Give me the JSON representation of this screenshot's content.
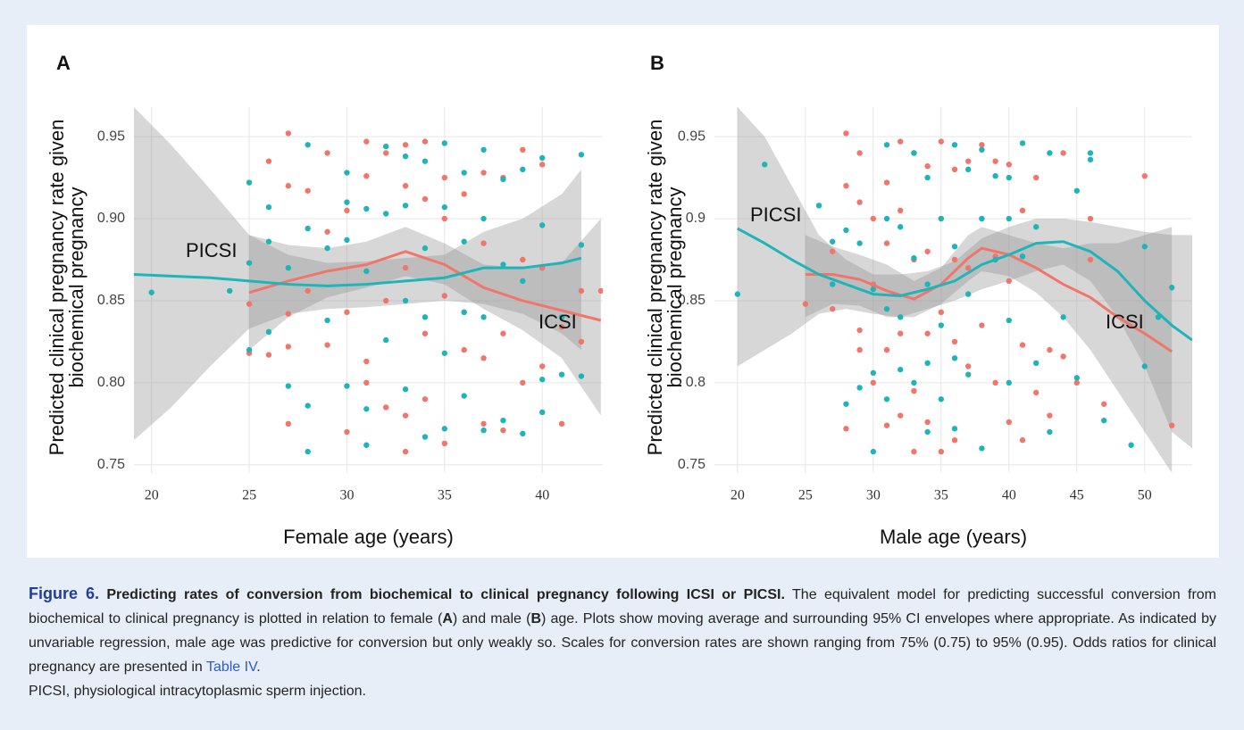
{
  "chart_data": [
    {
      "type": "scatter",
      "panel_label": "A",
      "xlabel": "Female age (years)",
      "ylabel": [
        "Predicted clinical pregnancy rate given",
        "biochemical pregnancy"
      ],
      "xlim": [
        19.1,
        43.1
      ],
      "ylim": [
        0.745,
        0.968
      ],
      "xticks": [
        20,
        25,
        30,
        35,
        40
      ],
      "yticks": [
        0.75,
        {
          "value": 0.8,
          "label": "0.80"
        },
        0.85,
        {
          "value": 0.9,
          "label": "0.90"
        },
        0.95
      ],
      "grid": true,
      "series": [
        {
          "name": "ICSI",
          "color": "#f0756b",
          "x": [
            25,
            25,
            26,
            26,
            27,
            27,
            27,
            27,
            27,
            28,
            28,
            29,
            29,
            29,
            30,
            30,
            30,
            31,
            31,
            31,
            31,
            32,
            32,
            32,
            33,
            33,
            33,
            33,
            33,
            34,
            34,
            34,
            34,
            35,
            35,
            35,
            35,
            36,
            36,
            36,
            37,
            37,
            37,
            37,
            38,
            38,
            38,
            39,
            39,
            39,
            40,
            40,
            40,
            41,
            41,
            42,
            42,
            43
          ],
          "values": [
            0.818,
            0.848,
            0.817,
            0.935,
            0.952,
            0.92,
            0.842,
            0.822,
            0.775,
            0.917,
            0.856,
            0.892,
            0.823,
            0.94,
            0.77,
            0.843,
            0.905,
            0.947,
            0.926,
            0.813,
            0.8,
            0.94,
            0.85,
            0.785,
            0.945,
            0.92,
            0.87,
            0.78,
            0.758,
            0.947,
            0.912,
            0.83,
            0.79,
            0.925,
            0.9,
            0.853,
            0.763,
            0.915,
            0.843,
            0.82,
            0.928,
            0.885,
            0.815,
            0.775,
            0.925,
            0.83,
            0.771,
            0.942,
            0.875,
            0.8,
            0.933,
            0.87,
            0.81,
            0.775,
            0.834,
            0.856,
            0.825,
            0.856
          ],
          "trend": {
            "x": [
              25,
              27,
              29,
              31,
              33,
              35,
              37,
              39,
              41,
              43
            ],
            "values": [
              0.855,
              0.862,
              0.868,
              0.872,
              0.88,
              0.872,
              0.858,
              0.85,
              0.844,
              0.838
            ],
            "lower": [
              0.82,
              0.84,
              0.852,
              0.858,
              0.865,
              0.86,
              0.845,
              0.832,
              0.815,
              0.78
            ],
            "upper": [
              0.89,
              0.884,
              0.882,
              0.886,
              0.895,
              0.885,
              0.872,
              0.87,
              0.873,
              0.9
            ]
          }
        },
        {
          "name": "PICSI",
          "color": "#1fb5b8",
          "x": [
            20,
            24,
            25,
            25,
            25,
            26,
            26,
            26,
            27,
            27,
            28,
            28,
            28,
            28,
            29,
            29,
            30,
            30,
            30,
            30,
            31,
            31,
            31,
            31,
            32,
            32,
            32,
            33,
            33,
            33,
            33,
            34,
            34,
            34,
            34,
            35,
            35,
            35,
            35,
            36,
            36,
            36,
            36,
            37,
            37,
            37,
            37,
            38,
            38,
            38,
            39,
            39,
            39,
            40,
            40,
            40,
            40,
            41,
            41,
            42,
            42,
            42
          ],
          "values": [
            0.855,
            0.856,
            0.922,
            0.873,
            0.82,
            0.907,
            0.886,
            0.831,
            0.87,
            0.798,
            0.945,
            0.894,
            0.786,
            0.758,
            0.838,
            0.882,
            0.928,
            0.91,
            0.887,
            0.798,
            0.906,
            0.868,
            0.784,
            0.762,
            0.944,
            0.903,
            0.826,
            0.938,
            0.908,
            0.85,
            0.796,
            0.935,
            0.882,
            0.84,
            0.767,
            0.946,
            0.907,
            0.818,
            0.772,
            0.928,
            0.886,
            0.843,
            0.792,
            0.942,
            0.9,
            0.84,
            0.771,
            0.924,
            0.872,
            0.777,
            0.93,
            0.862,
            0.769,
            0.937,
            0.896,
            0.782,
            0.802,
            0.84,
            0.805,
            0.939,
            0.884,
            0.804
          ],
          "trend": {
            "x": [
              19.1,
              21,
              23,
              25,
              27,
              29,
              31,
              33,
              35,
              37,
              39,
              41,
              42
            ],
            "values": [
              0.866,
              0.865,
              0.864,
              0.862,
              0.86,
              0.859,
              0.86,
              0.862,
              0.864,
              0.87,
              0.87,
              0.873,
              0.876
            ],
            "lower": [
              0.765,
              0.785,
              0.81,
              0.833,
              0.842,
              0.845,
              0.846,
              0.848,
              0.85,
              0.848,
              0.842,
              0.83,
              0.82
            ],
            "upper": [
              0.968,
              0.945,
              0.918,
              0.89,
              0.878,
              0.873,
              0.874,
              0.876,
              0.878,
              0.892,
              0.9,
              0.915,
              0.93
            ]
          }
        }
      ]
    },
    {
      "type": "scatter",
      "panel_label": "B",
      "xlabel": "Male age (years)",
      "ylabel": [
        "Predicted clinical pregnancy rate given",
        "biochemical pregnancy"
      ],
      "xlim": [
        18.3,
        53.5
      ],
      "ylim": [
        0.745,
        0.968
      ],
      "xticks": [
        20,
        25,
        30,
        35,
        40,
        45,
        50
      ],
      "yticks": [
        0.75,
        0.8,
        0.85,
        0.9,
        0.95
      ],
      "grid": true,
      "series": [
        {
          "name": "ICSI",
          "color": "#f0756b",
          "x": [
            25,
            27,
            27,
            28,
            28,
            28,
            29,
            29,
            29,
            29,
            30,
            30,
            30,
            31,
            31,
            31,
            31,
            32,
            32,
            32,
            32,
            33,
            33,
            33,
            33,
            34,
            34,
            34,
            34,
            35,
            35,
            35,
            35,
            36,
            36,
            36,
            36,
            37,
            37,
            37,
            38,
            38,
            38,
            39,
            39,
            39,
            40,
            40,
            40,
            41,
            41,
            41,
            42,
            42,
            43,
            43,
            44,
            44,
            45,
            46,
            46,
            47,
            50,
            52
          ],
          "values": [
            0.848,
            0.88,
            0.845,
            0.952,
            0.92,
            0.772,
            0.94,
            0.91,
            0.832,
            0.82,
            0.9,
            0.86,
            0.8,
            0.922,
            0.885,
            0.82,
            0.774,
            0.947,
            0.905,
            0.83,
            0.78,
            0.94,
            0.875,
            0.795,
            0.758,
            0.932,
            0.88,
            0.83,
            0.776,
            0.947,
            0.9,
            0.843,
            0.758,
            0.93,
            0.875,
            0.825,
            0.765,
            0.935,
            0.87,
            0.81,
            0.945,
            0.9,
            0.835,
            0.935,
            0.877,
            0.8,
            0.933,
            0.862,
            0.776,
            0.905,
            0.823,
            0.765,
            0.925,
            0.794,
            0.82,
            0.78,
            0.94,
            0.816,
            0.8,
            0.9,
            0.875,
            0.787,
            0.926,
            0.774
          ],
          "trend": {
            "x": [
              25,
              27,
              29,
              31,
              33,
              35,
              37,
              38,
              40,
              42,
              44,
              46,
              48,
              50,
              52
            ],
            "values": [
              0.866,
              0.866,
              0.863,
              0.856,
              0.851,
              0.86,
              0.876,
              0.882,
              0.878,
              0.87,
              0.86,
              0.852,
              0.84,
              0.83,
              0.819
            ],
            "lower": [
              0.84,
              0.848,
              0.847,
              0.84,
              0.84,
              0.848,
              0.862,
              0.868,
              0.865,
              0.855,
              0.84,
              0.82,
              0.795,
              0.77,
              0.745
            ],
            "upper": [
              0.89,
              0.883,
              0.878,
              0.872,
              0.862,
              0.87,
              0.89,
              0.895,
              0.89,
              0.885,
              0.882,
              0.885,
              0.885,
              0.89,
              0.895
            ]
          }
        },
        {
          "name": "PICSI",
          "color": "#1fb5b8",
          "x": [
            20,
            22,
            26,
            27,
            27,
            28,
            28,
            29,
            29,
            30,
            30,
            30,
            31,
            31,
            31,
            31,
            32,
            32,
            32,
            33,
            33,
            33,
            34,
            34,
            34,
            34,
            35,
            35,
            35,
            36,
            36,
            36,
            36,
            37,
            37,
            37,
            38,
            38,
            38,
            39,
            39,
            40,
            40,
            40,
            40,
            41,
            41,
            42,
            42,
            43,
            43,
            44,
            45,
            45,
            46,
            46,
            47,
            49,
            50,
            50,
            51,
            52
          ],
          "values": [
            0.854,
            0.933,
            0.908,
            0.886,
            0.86,
            0.893,
            0.787,
            0.885,
            0.797,
            0.857,
            0.806,
            0.758,
            0.945,
            0.9,
            0.845,
            0.79,
            0.895,
            0.84,
            0.808,
            0.94,
            0.876,
            0.8,
            0.925,
            0.86,
            0.812,
            0.77,
            0.9,
            0.835,
            0.79,
            0.945,
            0.883,
            0.815,
            0.772,
            0.93,
            0.854,
            0.805,
            0.942,
            0.9,
            0.76,
            0.926,
            0.875,
            0.925,
            0.9,
            0.838,
            0.8,
            0.946,
            0.877,
            0.895,
            0.812,
            0.94,
            0.77,
            0.84,
            0.917,
            0.803,
            0.94,
            0.936,
            0.777,
            0.762,
            0.883,
            0.81,
            0.84,
            0.858
          ],
          "trend": {
            "x": [
              20,
              22,
              24,
              26,
              28,
              30,
              32,
              34,
              36,
              38,
              40,
              42,
              44,
              46,
              48,
              50,
              52,
              53.5
            ],
            "values": [
              0.894,
              0.885,
              0.875,
              0.866,
              0.86,
              0.854,
              0.853,
              0.857,
              0.862,
              0.872,
              0.878,
              0.885,
              0.886,
              0.88,
              0.868,
              0.85,
              0.835,
              0.826
            ],
            "lower": [
              0.81,
              0.82,
              0.83,
              0.842,
              0.845,
              0.842,
              0.84,
              0.845,
              0.85,
              0.857,
              0.862,
              0.868,
              0.872,
              0.862,
              0.84,
              0.81,
              0.77,
              0.76
            ],
            "upper": [
              0.968,
              0.95,
              0.92,
              0.89,
              0.875,
              0.866,
              0.866,
              0.868,
              0.874,
              0.888,
              0.895,
              0.9,
              0.9,
              0.898,
              0.895,
              0.892,
              0.89,
              0.89
            ]
          }
        }
      ]
    }
  ],
  "caption": {
    "label": "Figure 6.",
    "title": "Predicting rates of conversion from biochemical to clinical pregnancy following ICSI or PICSI.",
    "body": [
      "The equivalent model for predicting successful conversion from biochemical to clinical pregnancy is plotted in relation to female (",
      "A",
      ") and male (",
      "B",
      ") age. Plots show moving average and surrounding 95% CI envelopes where appropriate. As indicated by unvariable regression, male age was predictive for conversion but only weakly so. Scales for conversion rates are shown ranging from 75% (0.75) to 95% (0.95). Odds ratios for clinical pregnancy are presented in ",
      "Table IV",
      ".",
      "PICSI, physiological intracytoplasmic sperm injection."
    ]
  }
}
